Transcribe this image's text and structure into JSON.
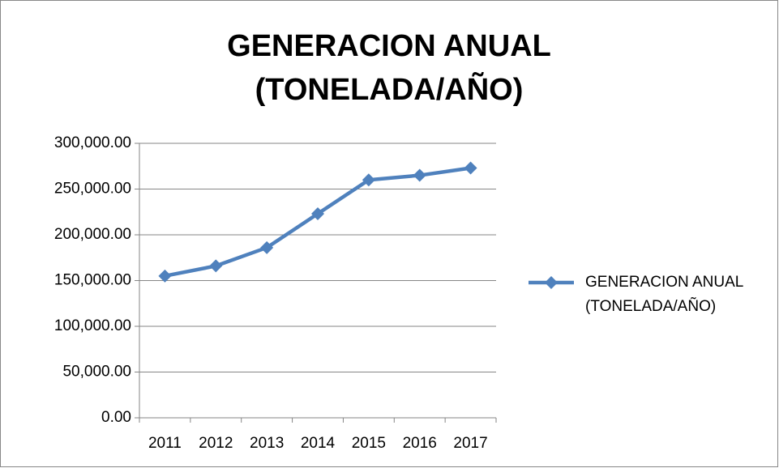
{
  "chart_data": {
    "type": "line",
    "title": "GENERACION ANUAL (TONELADA/AÑO)",
    "categories": [
      "2011",
      "2012",
      "2013",
      "2014",
      "2015",
      "2016",
      "2017"
    ],
    "series": [
      {
        "name": "GENERACION ANUAL (TONELADA/AÑO)",
        "color": "#4f81bd",
        "values": [
          155000,
          166000,
          186000,
          223000,
          260000,
          265000,
          273000
        ]
      }
    ],
    "ylim": [
      0,
      300000
    ],
    "yticks": [
      {
        "value": 0,
        "label": "0.00"
      },
      {
        "value": 50000,
        "label": "50,000.00"
      },
      {
        "value": 100000,
        "label": "100,000.00"
      },
      {
        "value": 150000,
        "label": "150,000.00"
      },
      {
        "value": 200000,
        "label": "200,000.00"
      },
      {
        "value": 250000,
        "label": "250,000.00"
      },
      {
        "value": 300000,
        "label": "300,000.00"
      }
    ],
    "grid": true,
    "legend": "right"
  }
}
